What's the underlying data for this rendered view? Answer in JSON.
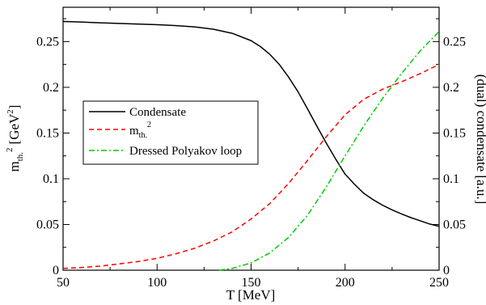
{
  "chart_data": {
    "type": "line",
    "xlabel": "T [MeV]",
    "ylabel_left": {
      "base": "m",
      "sub": "th.",
      "sup": "2",
      "unit": "[GeV",
      "unit_sup": "2",
      "unit_close": "]"
    },
    "ylabel_right": "(dual) condensate [a.u.]",
    "xlim": [
      50,
      250
    ],
    "ylim": [
      0,
      0.2875
    ],
    "ylim_right": [
      0,
      0.2875
    ],
    "x_ticks": [
      50,
      100,
      150,
      200,
      250
    ],
    "x_tick_labels": [
      "50",
      "100",
      "150",
      "200",
      "250"
    ],
    "y_ticks": [
      0,
      0.05,
      0.1,
      0.15,
      0.2,
      0.25
    ],
    "y_tick_labels": [
      "0",
      "0.05",
      "0.1",
      "0.15",
      "0.2",
      "0.25"
    ],
    "y_right_tick_labels": [
      "0",
      "0.05",
      "0.1",
      "0.15",
      "0.2",
      "0.25"
    ],
    "grid": false,
    "legend_position": "center-left",
    "series": [
      {
        "name": "Condensate",
        "color": "#000000",
        "dash": "solid",
        "axis": "right",
        "x": [
          50,
          60,
          70,
          80,
          90,
          100,
          110,
          120,
          130,
          140,
          150,
          155,
          160,
          165,
          170,
          175,
          180,
          185,
          190,
          195,
          200,
          205,
          210,
          215,
          220,
          225,
          230,
          235,
          240,
          245,
          250
        ],
        "y": [
          0.272,
          0.2713,
          0.2705,
          0.2698,
          0.2692,
          0.2685,
          0.2675,
          0.266,
          0.2635,
          0.259,
          0.251,
          0.2445,
          0.236,
          0.225,
          0.211,
          0.195,
          0.1765,
          0.1575,
          0.139,
          0.1215,
          0.105,
          0.094,
          0.084,
          0.077,
          0.071,
          0.066,
          0.0615,
          0.0575,
          0.054,
          0.0505,
          0.048
        ]
      },
      {
        "name": "m_th.^2",
        "color": "#ff0000",
        "dash": "dashed",
        "axis": "left",
        "x": [
          50,
          60,
          70,
          80,
          90,
          100,
          110,
          120,
          130,
          140,
          150,
          160,
          170,
          180,
          190,
          200,
          210,
          220,
          230,
          240,
          250
        ],
        "y": [
          0.002,
          0.003,
          0.0045,
          0.007,
          0.0095,
          0.013,
          0.018,
          0.024,
          0.032,
          0.042,
          0.056,
          0.073,
          0.095,
          0.12,
          0.146,
          0.17,
          0.187,
          0.198,
          0.206,
          0.215,
          0.225
        ]
      },
      {
        "name": "Dressed Polyakov loop",
        "color": "#00cc00",
        "dash": "dashdot",
        "axis": "right",
        "x": [
          133,
          140,
          150,
          160,
          170,
          180,
          190,
          200,
          210,
          220,
          230,
          240,
          250
        ],
        "y": [
          0,
          0.002,
          0.008,
          0.019,
          0.036,
          0.06,
          0.091,
          0.125,
          0.158,
          0.188,
          0.215,
          0.24,
          0.261
        ]
      }
    ],
    "legend_labels": {
      "condensate": "Condensate",
      "m_base": "m",
      "m_sub": "th.",
      "m_sup": "2",
      "polyakov": "Dressed Polyakov loop"
    }
  }
}
